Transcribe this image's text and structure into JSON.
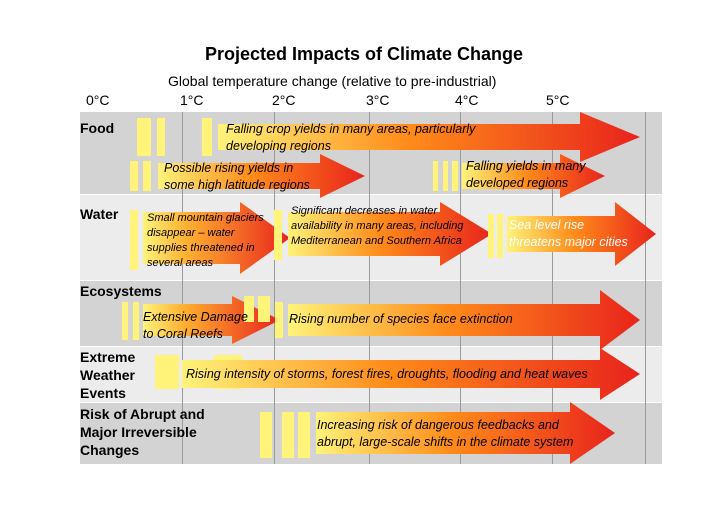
{
  "title": "Projected Impacts of Climate Change",
  "subtitle": "Global temperature change (relative to pre-industrial)",
  "temperature_ticks": [
    "0°C",
    "1°C",
    "2°C",
    "3°C",
    "4°C",
    "5°C"
  ],
  "categories": {
    "food": "Food",
    "water": "Water",
    "ecosystems": "Ecosystems",
    "extreme_weather": [
      "Extreme",
      "Weather",
      "Events"
    ],
    "abrupt_changes": [
      "Risk of Abrupt and",
      "Major Irreversible",
      "Changes"
    ]
  },
  "impacts": {
    "food_crop_yields": [
      "Falling crop yields in many areas, particularly",
      "developing regions"
    ],
    "food_rising_yields": [
      "Possible rising yields in",
      "some high latitude regions"
    ],
    "food_developed": [
      "Falling yields in many",
      "developed regions"
    ],
    "water_glaciers": [
      "Small mountain glaciers",
      "disappear  – water",
      "supplies threatened in",
      "several areas"
    ],
    "water_availability": [
      "Significant decreases in water",
      "availability in many areas, including",
      "Mediterranean and Southern Africa"
    ],
    "water_sea_level": [
      "Sea level rise",
      "threatens major cities"
    ],
    "eco_coral": [
      "Extensive Damage",
      "to Coral Reefs"
    ],
    "eco_extinction": "Rising number of species face extinction",
    "weather_intensity": "Rising intensity of storms, forest fires, droughts, flooding and heat waves",
    "abrupt_feedbacks": [
      "Increasing risk of dangerous feedbacks and",
      "abrupt, large-scale shifts in the climate system"
    ]
  },
  "colors": {
    "arrow_start": "#fff37a",
    "arrow_mid": "#ff8c1a",
    "arrow_end": "#e8231c",
    "band_grey": "#d3d3d3",
    "band_light": "#ececec",
    "text_light": "#ffffff"
  }
}
